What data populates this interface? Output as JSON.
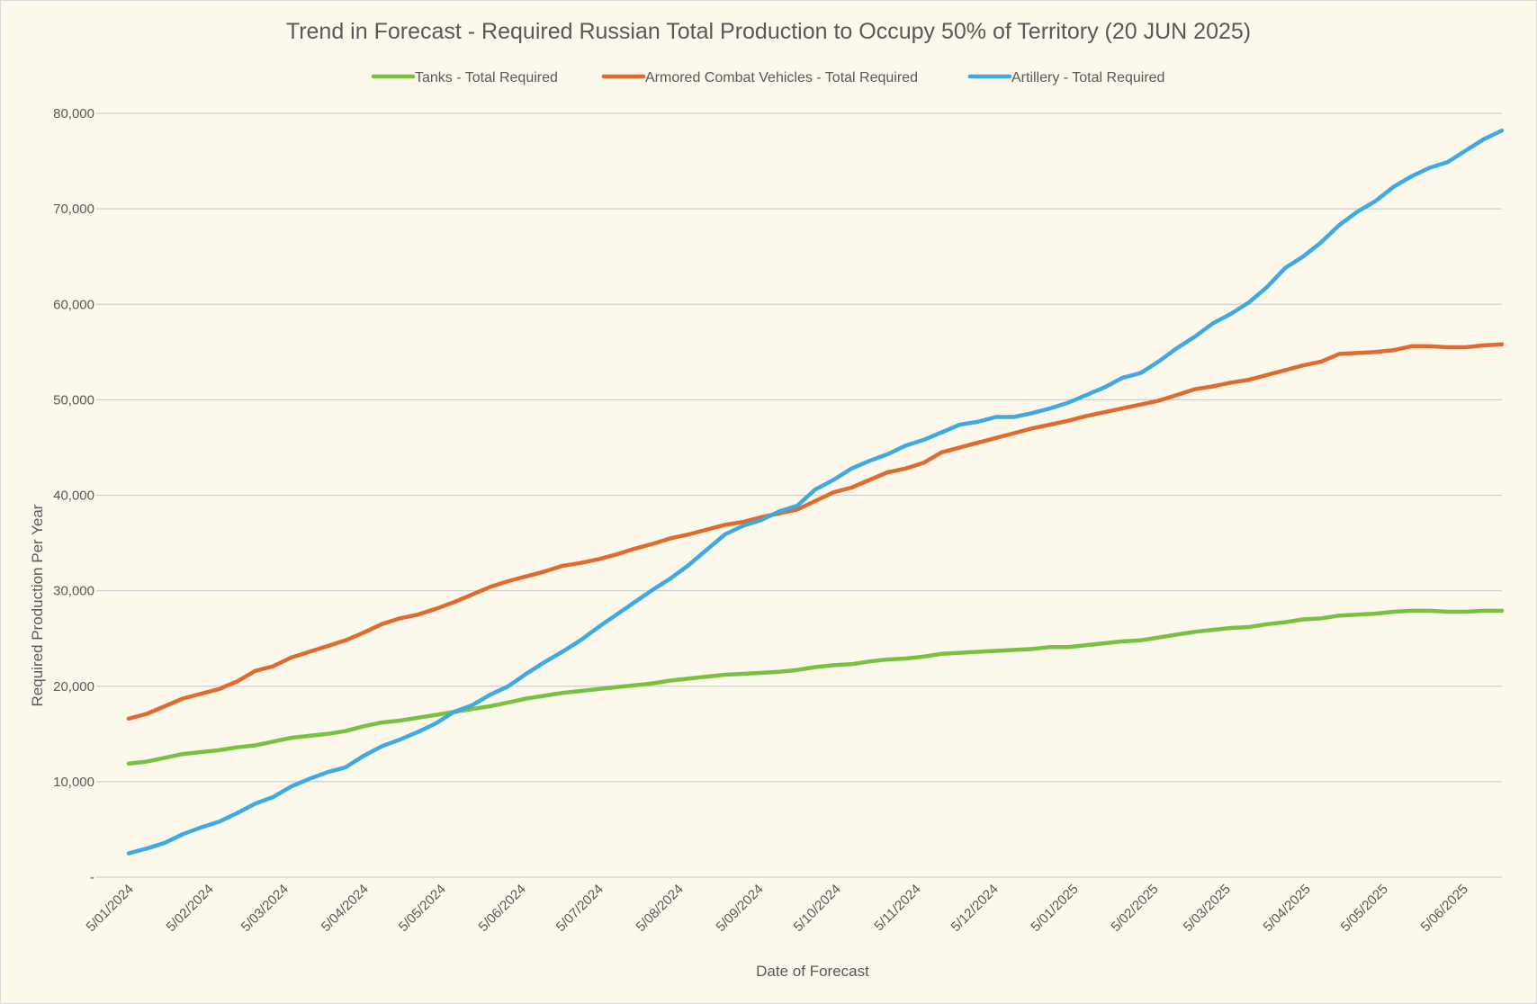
{
  "chart_data": {
    "type": "line",
    "title": "Trend in Forecast - Required Russian Total Production to Occupy 50% of Territory (20 JUN 2025)",
    "xlabel": "Date of Forecast",
    "ylabel": "Required Production Per Year",
    "ylim": [
      0,
      80000
    ],
    "y_ticks": [
      {
        "value": 0,
        "label": "-"
      },
      {
        "value": 10000,
        "label": "10,000"
      },
      {
        "value": 20000,
        "label": "20,000"
      },
      {
        "value": 30000,
        "label": "30,000"
      },
      {
        "value": 40000,
        "label": "40,000"
      },
      {
        "value": 50000,
        "label": "50,000"
      },
      {
        "value": 60000,
        "label": "60,000"
      },
      {
        "value": 70000,
        "label": "70,000"
      },
      {
        "value": 80000,
        "label": "80,000"
      }
    ],
    "x_ticks": [
      "5/01/2024",
      "5/02/2024",
      "5/03/2024",
      "5/04/2024",
      "5/05/2024",
      "5/06/2024",
      "5/07/2024",
      "5/08/2024",
      "5/09/2024",
      "5/10/2024",
      "5/11/2024",
      "5/12/2024",
      "5/01/2025",
      "5/02/2025",
      "5/03/2025",
      "5/04/2025",
      "5/05/2025",
      "5/06/2025"
    ],
    "x_range": [
      "2024-01-05",
      "2025-06-20"
    ],
    "legend_position": "top",
    "grid": true,
    "series": [
      {
        "name": "Tanks - Total Required",
        "color": "#7ac142",
        "points": [
          [
            "2024-01-05",
            11900
          ],
          [
            "2024-01-12",
            12100
          ],
          [
            "2024-01-19",
            12500
          ],
          [
            "2024-01-26",
            12900
          ],
          [
            "2024-02-02",
            13100
          ],
          [
            "2024-02-09",
            13300
          ],
          [
            "2024-02-16",
            13600
          ],
          [
            "2024-02-23",
            13800
          ],
          [
            "2024-03-01",
            14200
          ],
          [
            "2024-03-08",
            14600
          ],
          [
            "2024-03-15",
            14800
          ],
          [
            "2024-03-22",
            15000
          ],
          [
            "2024-03-29",
            15300
          ],
          [
            "2024-04-05",
            15800
          ],
          [
            "2024-04-12",
            16200
          ],
          [
            "2024-04-19",
            16400
          ],
          [
            "2024-04-26",
            16700
          ],
          [
            "2024-05-03",
            17000
          ],
          [
            "2024-05-10",
            17300
          ],
          [
            "2024-05-17",
            17600
          ],
          [
            "2024-05-24",
            17900
          ],
          [
            "2024-05-31",
            18300
          ],
          [
            "2024-06-07",
            18700
          ],
          [
            "2024-06-14",
            19000
          ],
          [
            "2024-06-21",
            19300
          ],
          [
            "2024-06-28",
            19500
          ],
          [
            "2024-07-05",
            19700
          ],
          [
            "2024-07-12",
            19900
          ],
          [
            "2024-07-19",
            20100
          ],
          [
            "2024-07-26",
            20300
          ],
          [
            "2024-08-02",
            20600
          ],
          [
            "2024-08-09",
            20800
          ],
          [
            "2024-08-16",
            21000
          ],
          [
            "2024-08-23",
            21200
          ],
          [
            "2024-08-30",
            21300
          ],
          [
            "2024-09-06",
            21400
          ],
          [
            "2024-09-13",
            21500
          ],
          [
            "2024-09-20",
            21700
          ],
          [
            "2024-09-27",
            22000
          ],
          [
            "2024-10-04",
            22200
          ],
          [
            "2024-10-11",
            22300
          ],
          [
            "2024-10-18",
            22600
          ],
          [
            "2024-10-25",
            22800
          ],
          [
            "2024-11-01",
            22900
          ],
          [
            "2024-11-08",
            23100
          ],
          [
            "2024-11-15",
            23400
          ],
          [
            "2024-11-22",
            23500
          ],
          [
            "2024-11-29",
            23600
          ],
          [
            "2024-12-06",
            23700
          ],
          [
            "2024-12-13",
            23800
          ],
          [
            "2024-12-20",
            23900
          ],
          [
            "2024-12-27",
            24100
          ],
          [
            "2025-01-03",
            24100
          ],
          [
            "2025-01-10",
            24300
          ],
          [
            "2025-01-17",
            24500
          ],
          [
            "2025-01-24",
            24700
          ],
          [
            "2025-01-31",
            24800
          ],
          [
            "2025-02-07",
            25100
          ],
          [
            "2025-02-14",
            25400
          ],
          [
            "2025-02-21",
            25700
          ],
          [
            "2025-02-28",
            25900
          ],
          [
            "2025-03-07",
            26100
          ],
          [
            "2025-03-14",
            26200
          ],
          [
            "2025-03-21",
            26500
          ],
          [
            "2025-03-28",
            26700
          ],
          [
            "2025-04-04",
            27000
          ],
          [
            "2025-04-11",
            27100
          ],
          [
            "2025-04-18",
            27400
          ],
          [
            "2025-04-25",
            27500
          ],
          [
            "2025-05-02",
            27600
          ],
          [
            "2025-05-09",
            27800
          ],
          [
            "2025-05-16",
            27900
          ],
          [
            "2025-05-23",
            27900
          ],
          [
            "2025-05-30",
            27800
          ],
          [
            "2025-06-06",
            27800
          ],
          [
            "2025-06-13",
            27900
          ],
          [
            "2025-06-20",
            27900
          ]
        ]
      },
      {
        "name": "Armored Combat Vehicles - Total Required",
        "color": "#e06b2e",
        "points": [
          [
            "2024-01-05",
            16600
          ],
          [
            "2024-01-12",
            17100
          ],
          [
            "2024-01-19",
            17900
          ],
          [
            "2024-01-26",
            18700
          ],
          [
            "2024-02-02",
            19200
          ],
          [
            "2024-02-09",
            19700
          ],
          [
            "2024-02-16",
            20500
          ],
          [
            "2024-02-23",
            21600
          ],
          [
            "2024-03-01",
            22100
          ],
          [
            "2024-03-08",
            23000
          ],
          [
            "2024-03-15",
            23600
          ],
          [
            "2024-03-22",
            24200
          ],
          [
            "2024-03-29",
            24800
          ],
          [
            "2024-04-05",
            25600
          ],
          [
            "2024-04-12",
            26500
          ],
          [
            "2024-04-19",
            27100
          ],
          [
            "2024-04-26",
            27500
          ],
          [
            "2024-05-03",
            28100
          ],
          [
            "2024-05-10",
            28800
          ],
          [
            "2024-05-17",
            29600
          ],
          [
            "2024-05-24",
            30400
          ],
          [
            "2024-05-31",
            31000
          ],
          [
            "2024-06-07",
            31500
          ],
          [
            "2024-06-14",
            32000
          ],
          [
            "2024-06-21",
            32600
          ],
          [
            "2024-06-28",
            32900
          ],
          [
            "2024-07-05",
            33300
          ],
          [
            "2024-07-12",
            33800
          ],
          [
            "2024-07-19",
            34400
          ],
          [
            "2024-07-26",
            34900
          ],
          [
            "2024-08-02",
            35500
          ],
          [
            "2024-08-09",
            35900
          ],
          [
            "2024-08-16",
            36400
          ],
          [
            "2024-08-23",
            36900
          ],
          [
            "2024-08-30",
            37200
          ],
          [
            "2024-09-06",
            37700
          ],
          [
            "2024-09-13",
            38100
          ],
          [
            "2024-09-20",
            38500
          ],
          [
            "2024-09-27",
            39400
          ],
          [
            "2024-10-04",
            40300
          ],
          [
            "2024-10-11",
            40800
          ],
          [
            "2024-10-18",
            41600
          ],
          [
            "2024-10-25",
            42400
          ],
          [
            "2024-11-01",
            42800
          ],
          [
            "2024-11-08",
            43400
          ],
          [
            "2024-11-15",
            44500
          ],
          [
            "2024-11-22",
            45000
          ],
          [
            "2024-11-29",
            45500
          ],
          [
            "2024-12-06",
            46000
          ],
          [
            "2024-12-13",
            46500
          ],
          [
            "2024-12-20",
            47000
          ],
          [
            "2024-12-27",
            47400
          ],
          [
            "2025-01-03",
            47800
          ],
          [
            "2025-01-10",
            48300
          ],
          [
            "2025-01-17",
            48700
          ],
          [
            "2025-01-24",
            49100
          ],
          [
            "2025-01-31",
            49500
          ],
          [
            "2025-02-07",
            49900
          ],
          [
            "2025-02-14",
            50500
          ],
          [
            "2025-02-21",
            51100
          ],
          [
            "2025-02-28",
            51400
          ],
          [
            "2025-03-07",
            51800
          ],
          [
            "2025-03-14",
            52100
          ],
          [
            "2025-03-21",
            52600
          ],
          [
            "2025-03-28",
            53100
          ],
          [
            "2025-04-04",
            53600
          ],
          [
            "2025-04-11",
            54000
          ],
          [
            "2025-04-18",
            54800
          ],
          [
            "2025-04-25",
            54900
          ],
          [
            "2025-05-02",
            55000
          ],
          [
            "2025-05-09",
            55200
          ],
          [
            "2025-05-16",
            55600
          ],
          [
            "2025-05-23",
            55600
          ],
          [
            "2025-05-30",
            55500
          ],
          [
            "2025-06-06",
            55500
          ],
          [
            "2025-06-13",
            55700
          ],
          [
            "2025-06-20",
            55800
          ]
        ]
      },
      {
        "name": "Artillery - Total Required",
        "color": "#3fa9e0",
        "points": [
          [
            "2024-01-05",
            2500
          ],
          [
            "2024-01-12",
            3000
          ],
          [
            "2024-01-19",
            3600
          ],
          [
            "2024-01-26",
            4500
          ],
          [
            "2024-02-02",
            5200
          ],
          [
            "2024-02-09",
            5800
          ],
          [
            "2024-02-16",
            6700
          ],
          [
            "2024-02-23",
            7700
          ],
          [
            "2024-03-01",
            8400
          ],
          [
            "2024-03-08",
            9500
          ],
          [
            "2024-03-15",
            10300
          ],
          [
            "2024-03-22",
            11000
          ],
          [
            "2024-03-29",
            11500
          ],
          [
            "2024-04-05",
            12700
          ],
          [
            "2024-04-12",
            13700
          ],
          [
            "2024-04-19",
            14400
          ],
          [
            "2024-04-26",
            15200
          ],
          [
            "2024-05-03",
            16100
          ],
          [
            "2024-05-10",
            17300
          ],
          [
            "2024-05-17",
            18000
          ],
          [
            "2024-05-24",
            19100
          ],
          [
            "2024-05-31",
            20000
          ],
          [
            "2024-06-07",
            21300
          ],
          [
            "2024-06-14",
            22500
          ],
          [
            "2024-06-21",
            23600
          ],
          [
            "2024-06-28",
            24800
          ],
          [
            "2024-07-05",
            26200
          ],
          [
            "2024-07-12",
            27500
          ],
          [
            "2024-07-19",
            28800
          ],
          [
            "2024-07-26",
            30100
          ],
          [
            "2024-08-02",
            31300
          ],
          [
            "2024-08-09",
            32700
          ],
          [
            "2024-08-16",
            34300
          ],
          [
            "2024-08-23",
            35900
          ],
          [
            "2024-08-30",
            36800
          ],
          [
            "2024-09-06",
            37400
          ],
          [
            "2024-09-13",
            38300
          ],
          [
            "2024-09-20",
            38900
          ],
          [
            "2024-09-27",
            40600
          ],
          [
            "2024-10-04",
            41600
          ],
          [
            "2024-10-11",
            42800
          ],
          [
            "2024-10-18",
            43600
          ],
          [
            "2024-10-25",
            44300
          ],
          [
            "2024-11-01",
            45200
          ],
          [
            "2024-11-08",
            45800
          ],
          [
            "2024-11-15",
            46600
          ],
          [
            "2024-11-22",
            47400
          ],
          [
            "2024-11-29",
            47700
          ],
          [
            "2024-12-06",
            48200
          ],
          [
            "2024-12-13",
            48200
          ],
          [
            "2024-12-20",
            48600
          ],
          [
            "2024-12-27",
            49100
          ],
          [
            "2025-01-03",
            49700
          ],
          [
            "2025-01-10",
            50500
          ],
          [
            "2025-01-17",
            51300
          ],
          [
            "2025-01-24",
            52300
          ],
          [
            "2025-01-31",
            52800
          ],
          [
            "2025-02-07",
            54000
          ],
          [
            "2025-02-14",
            55400
          ],
          [
            "2025-02-21",
            56600
          ],
          [
            "2025-02-28",
            58000
          ],
          [
            "2025-03-07",
            59000
          ],
          [
            "2025-03-14",
            60200
          ],
          [
            "2025-03-21",
            61800
          ],
          [
            "2025-03-28",
            63800
          ],
          [
            "2025-04-04",
            65000
          ],
          [
            "2025-04-11",
            66500
          ],
          [
            "2025-04-18",
            68300
          ],
          [
            "2025-04-25",
            69700
          ],
          [
            "2025-05-02",
            70800
          ],
          [
            "2025-05-09",
            72300
          ],
          [
            "2025-05-16",
            73400
          ],
          [
            "2025-05-23",
            74300
          ],
          [
            "2025-05-30",
            74900
          ],
          [
            "2025-06-06",
            76100
          ],
          [
            "2025-06-13",
            77300
          ],
          [
            "2025-06-20",
            78200
          ]
        ]
      }
    ]
  }
}
